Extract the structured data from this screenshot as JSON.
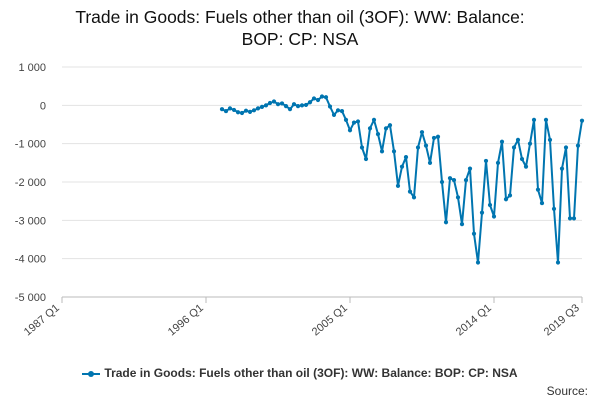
{
  "chart_data": {
    "type": "line",
    "title_lines": [
      "Trade in Goods: Fuels other than oil (3OF): WW: Balance:",
      "BOP: CP: NSA"
    ],
    "x_tick_labels": [
      "1987 Q1",
      "1996 Q1",
      "2005 Q1",
      "2014 Q1",
      "2019 Q3"
    ],
    "y_tick_labels": [
      "1 000",
      "0",
      "-1 000",
      "-2 000",
      "-3 000",
      "-4 000",
      "-5 000"
    ],
    "xlim": [
      1987.0,
      2019.5
    ],
    "ylim": [
      -5000,
      1000
    ],
    "grid": "horizontal",
    "legend_position": "bottom",
    "series_color": "#0075b0",
    "series": [
      {
        "name": "Trade in Goods: Fuels other than oil (3OF): WW: Balance: BOP: CP: NSA",
        "x": [
          1997.0,
          1997.25,
          1997.5,
          1997.75,
          1998.0,
          1998.25,
          1998.5,
          1998.75,
          1999.0,
          1999.25,
          1999.5,
          1999.75,
          2000.0,
          2000.25,
          2000.5,
          2000.75,
          2001.0,
          2001.25,
          2001.5,
          2001.75,
          2002.0,
          2002.25,
          2002.5,
          2002.75,
          2003.0,
          2003.25,
          2003.5,
          2003.75,
          2004.0,
          2004.25,
          2004.5,
          2004.75,
          2005.0,
          2005.25,
          2005.5,
          2005.75,
          2006.0,
          2006.25,
          2006.5,
          2006.75,
          2007.0,
          2007.25,
          2007.5,
          2007.75,
          2008.0,
          2008.25,
          2008.5,
          2008.75,
          2009.0,
          2009.25,
          2009.5,
          2009.75,
          2010.0,
          2010.25,
          2010.5,
          2010.75,
          2011.0,
          2011.25,
          2011.5,
          2011.75,
          2012.0,
          2012.25,
          2012.5,
          2012.75,
          2013.0,
          2013.25,
          2013.5,
          2013.75,
          2014.0,
          2014.25,
          2014.5,
          2014.75,
          2015.0,
          2015.25,
          2015.5,
          2015.75,
          2016.0,
          2016.25,
          2016.5,
          2016.75,
          2017.0,
          2017.25,
          2017.5,
          2017.75,
          2018.0,
          2018.25,
          2018.5,
          2018.75,
          2019.0,
          2019.25,
          2019.5
        ],
        "values": [
          -100,
          -150,
          -80,
          -120,
          -180,
          -200,
          -140,
          -170,
          -130,
          -80,
          -40,
          0,
          60,
          100,
          30,
          50,
          -20,
          -100,
          30,
          -20,
          0,
          10,
          80,
          180,
          140,
          230,
          210,
          -30,
          -250,
          -130,
          -150,
          -380,
          -650,
          -450,
          -420,
          -1100,
          -1400,
          -600,
          -380,
          -750,
          -1200,
          -600,
          -520,
          -1200,
          -2100,
          -1600,
          -1350,
          -2250,
          -2400,
          -1100,
          -700,
          -1050,
          -1500,
          -850,
          -820,
          -2000,
          -3050,
          -1900,
          -1950,
          -2400,
          -3100,
          -1950,
          -1650,
          -3350,
          -4100,
          -2800,
          -1450,
          -2600,
          -2900,
          -1500,
          -950,
          -2450,
          -2350,
          -1100,
          -900,
          -1400,
          -1600,
          -1000,
          -380,
          -2200,
          -2550,
          -380,
          -900,
          -2700,
          -4100,
          -1650,
          -1100,
          -2950,
          -2950,
          -1050,
          -400
        ]
      }
    ]
  },
  "legend_label": "Trade in Goods: Fuels other than oil (3OF): WW: Balance: BOP: CP: NSA",
  "source_label": "Source:"
}
